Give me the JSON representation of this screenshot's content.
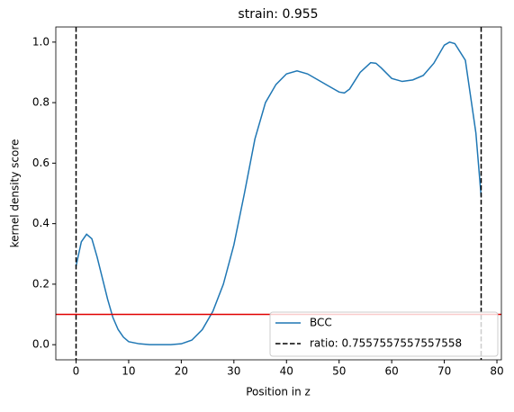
{
  "chart_data": {
    "type": "line",
    "title": "strain: 0.955",
    "x_label": "Position in z",
    "y_label": "kernel density score",
    "x": [
      0,
      1,
      2,
      3,
      4,
      5,
      6,
      7,
      8,
      9,
      10,
      12,
      14,
      16,
      18,
      20,
      22,
      24,
      26,
      28,
      30,
      32,
      34,
      36,
      38,
      40,
      42,
      44,
      46,
      48,
      50,
      51,
      52,
      54,
      56,
      57,
      58,
      60,
      62,
      64,
      66,
      68,
      70,
      71,
      72,
      74,
      76,
      77
    ],
    "series": [
      {
        "name": "BCC",
        "color": "#1f77b4",
        "values": [
          0.26,
          0.34,
          0.365,
          0.35,
          0.29,
          0.22,
          0.15,
          0.09,
          0.05,
          0.025,
          0.01,
          0.003,
          0.0,
          0.0,
          0.0,
          0.003,
          0.015,
          0.05,
          0.11,
          0.2,
          0.33,
          0.5,
          0.68,
          0.8,
          0.86,
          0.895,
          0.905,
          0.895,
          0.875,
          0.855,
          0.835,
          0.832,
          0.845,
          0.9,
          0.932,
          0.93,
          0.915,
          0.88,
          0.87,
          0.875,
          0.89,
          0.93,
          0.99,
          1.0,
          0.995,
          0.94,
          0.7,
          0.49
        ]
      }
    ],
    "vlines": {
      "name": "ratio: 0.7557557557557558",
      "color": "#000000",
      "x": [
        0,
        77
      ]
    },
    "hline": {
      "y": 0.1,
      "color": "#e00000"
    },
    "xlim": [
      -3.85,
      80.85
    ],
    "ylim": [
      -0.05,
      1.05
    ],
    "xticks": [
      0,
      10,
      20,
      30,
      40,
      50,
      60,
      70,
      80
    ],
    "yticks": [
      {
        "value": 0,
        "label": "0.0"
      },
      {
        "value": 0.2,
        "label": "0.2"
      },
      {
        "value": 0.4,
        "label": "0.4"
      },
      {
        "value": 0.6,
        "label": "0.6"
      },
      {
        "value": 0.8,
        "label": "0.8"
      },
      {
        "value": 1,
        "label": "1.0"
      }
    ],
    "legend": "lower right"
  }
}
